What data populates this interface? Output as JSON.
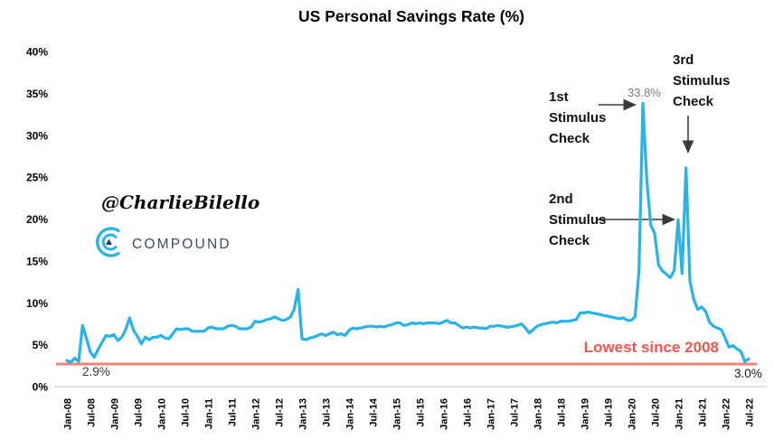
{
  "title": "US Personal Savings Rate (%)",
  "watermark": {
    "handle": "@CharlieBilello",
    "brand": "COMPOUND"
  },
  "annotations": {
    "first": {
      "lines": [
        "1st",
        "Stimulus",
        "Check"
      ]
    },
    "second": {
      "lines": [
        "2nd",
        "Stimulus",
        "Check"
      ]
    },
    "third": {
      "lines": [
        "3rd",
        "Stimulus",
        "Check"
      ]
    },
    "peak_label": "33.8%",
    "start_label": "2.9%",
    "end_label": "3.0%",
    "lowest_label": "Lowest since 2008"
  },
  "colors": {
    "line": "#29b3e8",
    "red_line": "#f4817b",
    "red_text": "#f4544b",
    "peak_label_text": "#7f7f7f",
    "axis_line": "#d9d9d9",
    "arrow": "#3a3a3a",
    "brand_icon": "#29b6e2",
    "brand_text": "#3e4d63"
  },
  "chart_data": {
    "type": "line",
    "title": "US Personal Savings Rate (%)",
    "unit": "%",
    "frequency": "monthly",
    "x_start": "Jan-08",
    "x_end": "Jul-22",
    "x_tick_labels": [
      "Jan-08",
      "Jul-08",
      "Jan-09",
      "Jul-09",
      "Jan-10",
      "Jul-10",
      "Jan-11",
      "Jul-11",
      "Jan-12",
      "Jul-12",
      "Jan-13",
      "Jul-13",
      "Jan-14",
      "Jul-14",
      "Jan-15",
      "Jul-15",
      "Jan-16",
      "Jul-16",
      "Jan-17",
      "Jul-17",
      "Jan-18",
      "Jul-18",
      "Jan-19",
      "Jul-19",
      "Jan-20",
      "Jul-20",
      "Jan-21",
      "Jul-21",
      "Jan-22",
      "Jul-22"
    ],
    "y_ticks": [
      "0%",
      "5%",
      "10%",
      "15%",
      "20%",
      "25%",
      "30%",
      "35%",
      "40%"
    ],
    "ylim": [
      0,
      40
    ],
    "grid": false,
    "legend": "none",
    "values": [
      3.1,
      2.9,
      3.4,
      3.0,
      7.3,
      5.7,
      4.1,
      3.5,
      4.5,
      5.3,
      6.1,
      6.0,
      6.2,
      5.5,
      5.9,
      6.8,
      8.2,
      6.7,
      6.0,
      5.1,
      5.9,
      5.6,
      5.9,
      5.9,
      6.1,
      5.8,
      5.7,
      6.3,
      6.9,
      6.8,
      6.9,
      6.9,
      6.6,
      6.6,
      6.6,
      6.6,
      7.0,
      7.1,
      6.9,
      6.9,
      6.9,
      7.2,
      7.3,
      7.2,
      6.9,
      6.9,
      6.9,
      7.1,
      7.8,
      7.7,
      7.8,
      8.0,
      8.1,
      8.3,
      8.1,
      7.9,
      8.0,
      8.3,
      9.2,
      11.6,
      5.7,
      5.6,
      5.8,
      5.9,
      6.1,
      6.3,
      6.1,
      6.3,
      6.5,
      6.2,
      6.3,
      6.1,
      6.7,
      7.0,
      6.9,
      7.0,
      7.1,
      7.2,
      7.2,
      7.1,
      7.2,
      7.1,
      7.3,
      7.4,
      7.6,
      7.6,
      7.3,
      7.4,
      7.6,
      7.5,
      7.6,
      7.5,
      7.6,
      7.6,
      7.6,
      7.5,
      7.7,
      7.9,
      7.6,
      7.6,
      7.3,
      7.0,
      7.1,
      7.0,
      7.1,
      7.0,
      7.0,
      6.9,
      7.2,
      7.2,
      7.3,
      7.2,
      7.1,
      7.1,
      7.2,
      7.3,
      7.5,
      7.0,
      6.4,
      6.8,
      7.2,
      7.4,
      7.5,
      7.6,
      7.7,
      7.6,
      7.8,
      7.8,
      7.8,
      7.9,
      8.0,
      8.8,
      8.8,
      8.9,
      8.8,
      8.7,
      8.6,
      8.5,
      8.4,
      8.3,
      8.2,
      8.1,
      8.2,
      7.9,
      7.9,
      8.3,
      13.8,
      33.8,
      24.7,
      19.3,
      18.3,
      14.5,
      13.8,
      13.4,
      13.0,
      13.9,
      19.9,
      13.5,
      26.1,
      12.6,
      10.4,
      9.2,
      9.5,
      9.0,
      7.7,
      7.2,
      7.0,
      6.8,
      5.8,
      4.7,
      4.9,
      4.5,
      4.2,
      3.0,
      3.3
    ],
    "reference_line": {
      "value": 2.9,
      "label": "Lowest since 2008"
    },
    "callouts": [
      {
        "label": "1st Stimulus Check",
        "month": "Apr-20",
        "value": 33.8
      },
      {
        "label": "2nd Stimulus Check",
        "month": "Jan-21",
        "value": 19.9
      },
      {
        "label": "3rd Stimulus Check",
        "month": "Mar-21",
        "value": 26.1
      },
      {
        "label": "2.9%",
        "month": "Feb-08",
        "value": 2.9
      },
      {
        "label": "3.0%",
        "month": "Jun-22",
        "value": 3.0
      }
    ]
  }
}
